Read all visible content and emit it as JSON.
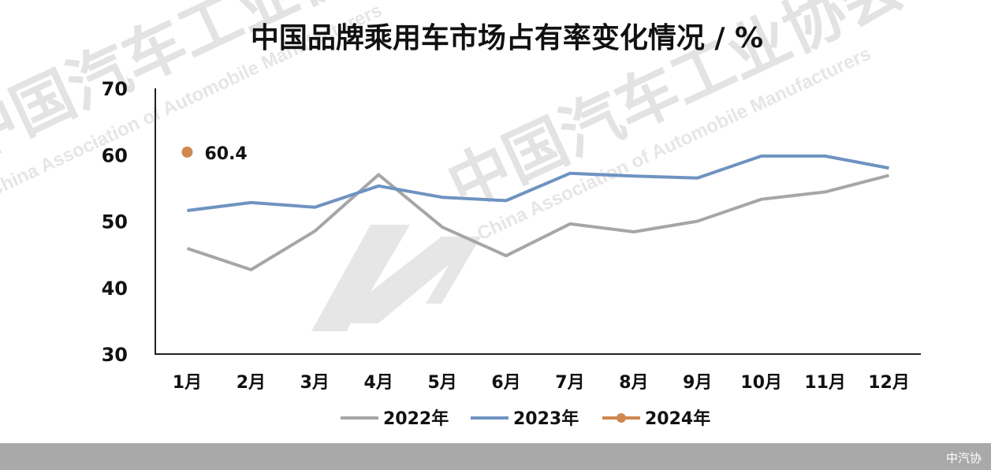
{
  "chart_data": {
    "type": "line",
    "title": "中国品牌乘用车市场占有率变化情况 / %",
    "categories": [
      "1月",
      "2月",
      "3月",
      "4月",
      "5月",
      "6月",
      "7月",
      "8月",
      "9月",
      "10月",
      "11月",
      "12月"
    ],
    "ylim": [
      30,
      70
    ],
    "yticks": [
      30,
      40,
      50,
      60,
      70
    ],
    "grid": false,
    "legend_position": "bottom",
    "series": [
      {
        "name": "2022年",
        "color": "#a6a6a6",
        "values": [
          45.9,
          42.7,
          48.5,
          57.0,
          49.1,
          44.8,
          49.6,
          48.4,
          50.0,
          53.3,
          54.4,
          56.9
        ]
      },
      {
        "name": "2023年",
        "color": "#6e93c1",
        "values": [
          51.6,
          52.8,
          52.1,
          55.3,
          53.6,
          53.1,
          57.2,
          56.8,
          56.5,
          59.8,
          59.8,
          58.0
        ]
      },
      {
        "name": "2024年",
        "color": "#d0884e",
        "values": [
          60.4,
          null,
          null,
          null,
          null,
          null,
          null,
          null,
          null,
          null,
          null,
          null
        ],
        "data_labels": [
          "60.4"
        ]
      }
    ]
  },
  "watermark": {
    "cn": "中国汽车工业协会",
    "en": "China Association of Automobile Manufacturers"
  },
  "footer": {
    "text": "中汽协"
  }
}
